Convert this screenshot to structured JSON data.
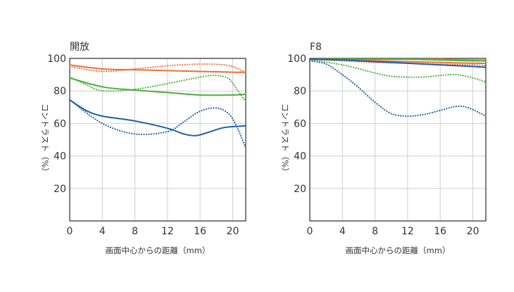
{
  "chart_data": [
    {
      "type": "line",
      "title": "開放",
      "xlabel": "画面中心からの距離（mm）",
      "ylabel": "コントラスト（%）",
      "xlim": [
        0,
        21.6
      ],
      "ylim": [
        0,
        100
      ],
      "xticks": [
        "0",
        "4",
        "8",
        "12",
        "16",
        "20"
      ],
      "yticks": [
        "20",
        "40",
        "60",
        "80",
        "100"
      ],
      "grid": true,
      "series": [
        {
          "color": "#e8703a",
          "dash": "solid",
          "x": [
            0,
            4,
            8,
            12,
            16,
            20,
            21.6
          ],
          "y": [
            96,
            93.5,
            93,
            92.5,
            92,
            91.5,
            91.5
          ]
        },
        {
          "color": "#e8703a",
          "dash": "dotted",
          "x": [
            0,
            4,
            8,
            12,
            16,
            19,
            20.5,
            21.6
          ],
          "y": [
            95,
            92,
            93.5,
            95.5,
            96.5,
            96,
            94,
            91
          ]
        },
        {
          "color": "#4caf3c",
          "dash": "solid",
          "x": [
            0,
            4,
            8,
            12,
            16,
            20,
            21.6
          ],
          "y": [
            88,
            82.5,
            80.5,
            79,
            77.5,
            77.5,
            78
          ]
        },
        {
          "color": "#4caf3c",
          "dash": "dotted",
          "x": [
            0,
            2,
            4,
            8,
            12,
            16,
            18,
            19.5,
            20.5,
            21.6
          ],
          "y": [
            88.5,
            84,
            80,
            81,
            84.5,
            88.5,
            89.5,
            87.5,
            81,
            73.5
          ]
        },
        {
          "color": "#1f5ea8",
          "dash": "solid",
          "x": [
            0,
            2,
            4,
            8,
            12,
            14,
            15.5,
            17,
            19,
            21.6
          ],
          "y": [
            74.5,
            68,
            64.5,
            61.5,
            57,
            53.5,
            52.5,
            54.5,
            57.5,
            58.5
          ]
        },
        {
          "color": "#1f5ea8",
          "dash": "dotted",
          "x": [
            0,
            4,
            8,
            12,
            14,
            16,
            18,
            19.5,
            20.5,
            21.6
          ],
          "y": [
            74.5,
            60,
            53.5,
            55,
            61,
            67.5,
            69.5,
            66,
            58,
            45
          ]
        }
      ]
    },
    {
      "type": "line",
      "title": "F8",
      "xlabel": "画面中心からの距離（mm）",
      "ylabel": "コントラスト（%）",
      "xlim": [
        0,
        21.6
      ],
      "ylim": [
        0,
        100
      ],
      "xticks": [
        "0",
        "4",
        "8",
        "12",
        "16",
        "20"
      ],
      "yticks": [
        "20",
        "40",
        "60",
        "80",
        "100"
      ],
      "grid": true,
      "series": [
        {
          "color": "#c49a2e",
          "dash": "solid",
          "x": [
            0,
            4,
            8,
            12,
            16,
            20,
            21.6
          ],
          "y": [
            99.5,
            99.5,
            99.5,
            99.5,
            99.5,
            99,
            99
          ]
        },
        {
          "color": "#e8703a",
          "dash": "solid",
          "x": [
            0,
            4,
            8,
            12,
            16,
            20,
            21.6
          ],
          "y": [
            99.5,
            99,
            98.5,
            98,
            97.5,
            97,
            97
          ]
        },
        {
          "color": "#e8703a",
          "dash": "dotted",
          "x": [
            0,
            4,
            8,
            12,
            16,
            20,
            21.6
          ],
          "y": [
            99.5,
            98.5,
            97.5,
            97,
            96.5,
            96,
            95.5
          ]
        },
        {
          "color": "#4caf3c",
          "dash": "solid",
          "x": [
            0,
            4,
            8,
            12,
            16,
            20,
            21.6
          ],
          "y": [
            99.5,
            99.5,
            99.5,
            99.5,
            99,
            98.5,
            98.5
          ]
        },
        {
          "color": "#4caf3c",
          "dash": "dotted",
          "x": [
            0,
            4,
            8,
            10,
            12,
            14,
            16,
            18,
            20,
            21.6
          ],
          "y": [
            99,
            96,
            91,
            89,
            88.5,
            88.5,
            89.5,
            90,
            88,
            85.5
          ]
        },
        {
          "color": "#1f5ea8",
          "dash": "solid",
          "x": [
            0,
            4,
            8,
            12,
            16,
            20,
            21.6
          ],
          "y": [
            99.5,
            99,
            98,
            97,
            96,
            95,
            94.5
          ]
        },
        {
          "color": "#1f5ea8",
          "dash": "dotted",
          "x": [
            0,
            2,
            4,
            6,
            8,
            10,
            12,
            14,
            16,
            18,
            19.5,
            21.6
          ],
          "y": [
            98.5,
            96.5,
            90,
            82,
            73,
            66,
            64.5,
            65.5,
            68,
            70.5,
            69.5,
            64.5
          ]
        }
      ]
    }
  ]
}
